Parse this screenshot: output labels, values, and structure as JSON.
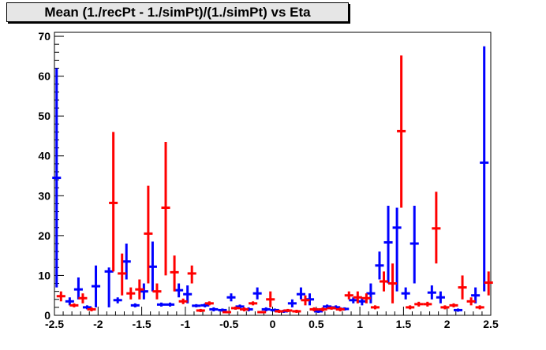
{
  "chart_data": {
    "type": "scatter",
    "title": "Mean (1./recPt - 1./simPt)/(1./simPt) vs Eta",
    "xlabel": "",
    "ylabel": "",
    "xlim": [
      -2.5,
      2.5
    ],
    "ylim": [
      0,
      71
    ],
    "x_ticks": [
      "-2.5",
      "-2",
      "-1.5",
      "-1",
      "-0.5",
      "0",
      "0.5",
      "1",
      "1.5",
      "2",
      "2.5"
    ],
    "y_ticks": [
      "0",
      "10",
      "20",
      "30",
      "40",
      "50",
      "60",
      "70"
    ],
    "grid": false,
    "legend": "none",
    "series": [
      {
        "color": "#0000ff",
        "points": [
          {
            "x": -2.475,
            "y": 34.5,
            "lo": 7,
            "hi": 62
          },
          {
            "x": -2.325,
            "y": 3.5,
            "lo": 2.5,
            "hi": 4.5
          },
          {
            "x": -2.225,
            "y": 6.5,
            "lo": 4,
            "hi": 9.5
          },
          {
            "x": -2.125,
            "y": 2.0,
            "lo": 1.5,
            "hi": 2.5
          },
          {
            "x": -2.025,
            "y": 7.3,
            "lo": 2,
            "hi": 12.5
          },
          {
            "x": -1.875,
            "y": 11.0,
            "lo": 2,
            "hi": 12
          },
          {
            "x": -1.775,
            "y": 3.8,
            "lo": 3,
            "hi": 4.5
          },
          {
            "x": -1.675,
            "y": 13.5,
            "lo": 9,
            "hi": 18
          },
          {
            "x": -1.575,
            "y": 2.5,
            "lo": 2,
            "hi": 3
          },
          {
            "x": -1.475,
            "y": 6.0,
            "lo": 4,
            "hi": 8
          },
          {
            "x": -1.375,
            "y": 12.2,
            "lo": 6,
            "hi": 18.5
          },
          {
            "x": -1.275,
            "y": 2.7,
            "lo": 2.2,
            "hi": 3.2
          },
          {
            "x": -1.175,
            "y": 2.7,
            "lo": 2.2,
            "hi": 3.2
          },
          {
            "x": -1.075,
            "y": 6.3,
            "lo": 4.5,
            "hi": 8
          },
          {
            "x": -0.975,
            "y": 5.3,
            "lo": 3,
            "hi": 7.5
          },
          {
            "x": -0.875,
            "y": 2.4,
            "lo": 2,
            "hi": 2.8
          },
          {
            "x": -0.775,
            "y": 2.5,
            "lo": 2,
            "hi": 3
          },
          {
            "x": -0.675,
            "y": 1.5,
            "lo": 1,
            "hi": 2
          },
          {
            "x": -0.575,
            "y": 1.3,
            "lo": 0.9,
            "hi": 1.7
          },
          {
            "x": -0.475,
            "y": 4.5,
            "lo": 3.5,
            "hi": 5.5
          },
          {
            "x": -0.375,
            "y": 2.2,
            "lo": 1.7,
            "hi": 2.7
          },
          {
            "x": -0.275,
            "y": 1.5,
            "lo": 1,
            "hi": 2
          },
          {
            "x": -0.175,
            "y": 5.5,
            "lo": 4,
            "hi": 7
          },
          {
            "x": -0.075,
            "y": 1.5,
            "lo": 1,
            "hi": 2
          },
          {
            "x": 0.025,
            "y": 1.3,
            "lo": 0.9,
            "hi": 1.7
          },
          {
            "x": 0.125,
            "y": 1.0,
            "lo": 0.6,
            "hi": 1.4
          },
          {
            "x": 0.225,
            "y": 3.0,
            "lo": 2,
            "hi": 4
          },
          {
            "x": 0.325,
            "y": 5.3,
            "lo": 4,
            "hi": 7
          },
          {
            "x": 0.425,
            "y": 4.0,
            "lo": 2.5,
            "hi": 5.5
          },
          {
            "x": 0.525,
            "y": 1.0,
            "lo": 0.6,
            "hi": 1.4
          },
          {
            "x": 0.625,
            "y": 2.2,
            "lo": 1.7,
            "hi": 2.7
          },
          {
            "x": 0.725,
            "y": 2.0,
            "lo": 1.5,
            "hi": 2.5
          },
          {
            "x": 0.825,
            "y": 1.6,
            "lo": 1.2,
            "hi": 2
          },
          {
            "x": 0.925,
            "y": 3.8,
            "lo": 3,
            "hi": 4.5
          },
          {
            "x": 1.025,
            "y": 3.5,
            "lo": 2.5,
            "hi": 4.5
          },
          {
            "x": 1.125,
            "y": 5.5,
            "lo": 3,
            "hi": 8
          },
          {
            "x": 1.225,
            "y": 12.5,
            "lo": 9,
            "hi": 16
          },
          {
            "x": 1.325,
            "y": 18.3,
            "lo": 8,
            "hi": 27.5
          },
          {
            "x": 1.425,
            "y": 22.0,
            "lo": 6,
            "hi": 27
          },
          {
            "x": 1.525,
            "y": 5.5,
            "lo": 4,
            "hi": 7
          },
          {
            "x": 1.625,
            "y": 18.0,
            "lo": 8,
            "hi": 27.5
          },
          {
            "x": 1.825,
            "y": 5.7,
            "lo": 4,
            "hi": 7.5
          },
          {
            "x": 1.925,
            "y": 4.5,
            "lo": 3,
            "hi": 6
          },
          {
            "x": 2.125,
            "y": 1.3,
            "lo": 0.9,
            "hi": 1.7
          },
          {
            "x": 2.325,
            "y": 5.0,
            "lo": 3,
            "hi": 7
          },
          {
            "x": 2.425,
            "y": 38.3,
            "lo": 6,
            "hi": 67.5
          }
        ]
      },
      {
        "color": "#ff0000",
        "points": [
          {
            "x": -2.425,
            "y": 4.8,
            "lo": 3.5,
            "hi": 6
          },
          {
            "x": -2.275,
            "y": 2.5,
            "lo": 2,
            "hi": 3
          },
          {
            "x": -2.175,
            "y": 4.3,
            "lo": 3,
            "hi": 5.5
          },
          {
            "x": -2.075,
            "y": 1.5,
            "lo": 1,
            "hi": 2
          },
          {
            "x": -1.825,
            "y": 28.2,
            "lo": 11,
            "hi": 46
          },
          {
            "x": -1.725,
            "y": 10.5,
            "lo": 5,
            "hi": 15.5
          },
          {
            "x": -1.625,
            "y": 5.5,
            "lo": 4,
            "hi": 7
          },
          {
            "x": -1.525,
            "y": 6.5,
            "lo": 4,
            "hi": 9
          },
          {
            "x": -1.425,
            "y": 20.5,
            "lo": 8,
            "hi": 32.5
          },
          {
            "x": -1.325,
            "y": 6.0,
            "lo": 4,
            "hi": 8
          },
          {
            "x": -1.225,
            "y": 27.0,
            "lo": 10,
            "hi": 43.5
          },
          {
            "x": -1.125,
            "y": 10.8,
            "lo": 6,
            "hi": 15
          },
          {
            "x": -1.025,
            "y": 3.5,
            "lo": 2.8,
            "hi": 4.2
          },
          {
            "x": -0.925,
            "y": 10.5,
            "lo": 8,
            "hi": 12.5
          },
          {
            "x": -0.825,
            "y": 1.2,
            "lo": 0.8,
            "hi": 1.6
          },
          {
            "x": -0.725,
            "y": 3.0,
            "lo": 2.5,
            "hi": 3.5
          },
          {
            "x": -0.525,
            "y": 0.8,
            "lo": 0.5,
            "hi": 1.1
          },
          {
            "x": -0.425,
            "y": 1.8,
            "lo": 1.4,
            "hi": 2.2
          },
          {
            "x": -0.325,
            "y": 1.5,
            "lo": 1,
            "hi": 2
          },
          {
            "x": -0.225,
            "y": 3.0,
            "lo": 2.5,
            "hi": 3.5
          },
          {
            "x": -0.125,
            "y": 0.8,
            "lo": 0.5,
            "hi": 1.1
          },
          {
            "x": -0.025,
            "y": 4.0,
            "lo": 2,
            "hi": 6
          },
          {
            "x": 0.075,
            "y": 1.0,
            "lo": 0.6,
            "hi": 1.4
          },
          {
            "x": 0.175,
            "y": 1.2,
            "lo": 0.8,
            "hi": 1.6
          },
          {
            "x": 0.275,
            "y": 1.0,
            "lo": 0.6,
            "hi": 1.4
          },
          {
            "x": 0.375,
            "y": 3.8,
            "lo": 2.5,
            "hi": 5
          },
          {
            "x": 0.475,
            "y": 1.5,
            "lo": 1,
            "hi": 2
          },
          {
            "x": 0.575,
            "y": 1.5,
            "lo": 1,
            "hi": 2
          },
          {
            "x": 0.675,
            "y": 1.8,
            "lo": 1.4,
            "hi": 2.2
          },
          {
            "x": 0.775,
            "y": 1.5,
            "lo": 1,
            "hi": 2
          },
          {
            "x": 0.875,
            "y": 5.0,
            "lo": 4,
            "hi": 6
          },
          {
            "x": 0.975,
            "y": 4.5,
            "lo": 3,
            "hi": 6
          },
          {
            "x": 1.075,
            "y": 4.3,
            "lo": 3,
            "hi": 5.5
          },
          {
            "x": 1.175,
            "y": 2.0,
            "lo": 1.5,
            "hi": 2.5
          },
          {
            "x": 1.275,
            "y": 8.5,
            "lo": 6,
            "hi": 11
          },
          {
            "x": 1.375,
            "y": 8.0,
            "lo": 3,
            "hi": 13
          },
          {
            "x": 1.475,
            "y": 46.2,
            "lo": 27,
            "hi": 65.2
          },
          {
            "x": 1.575,
            "y": 2.0,
            "lo": 1.5,
            "hi": 2.5
          },
          {
            "x": 1.675,
            "y": 2.8,
            "lo": 2.2,
            "hi": 3.4
          },
          {
            "x": 1.775,
            "y": 2.8,
            "lo": 2.2,
            "hi": 3.4
          },
          {
            "x": 1.875,
            "y": 21.8,
            "lo": 13,
            "hi": 31
          },
          {
            "x": 1.975,
            "y": 2.0,
            "lo": 1.5,
            "hi": 2.5
          },
          {
            "x": 2.075,
            "y": 2.5,
            "lo": 2,
            "hi": 3
          },
          {
            "x": 2.175,
            "y": 7.0,
            "lo": 4,
            "hi": 10
          },
          {
            "x": 2.275,
            "y": 3.5,
            "lo": 2.5,
            "hi": 4.5
          },
          {
            "x": 2.375,
            "y": 2.0,
            "lo": 1.5,
            "hi": 2.5
          },
          {
            "x": 2.475,
            "y": 8.2,
            "lo": 5,
            "hi": 11
          }
        ]
      }
    ]
  }
}
